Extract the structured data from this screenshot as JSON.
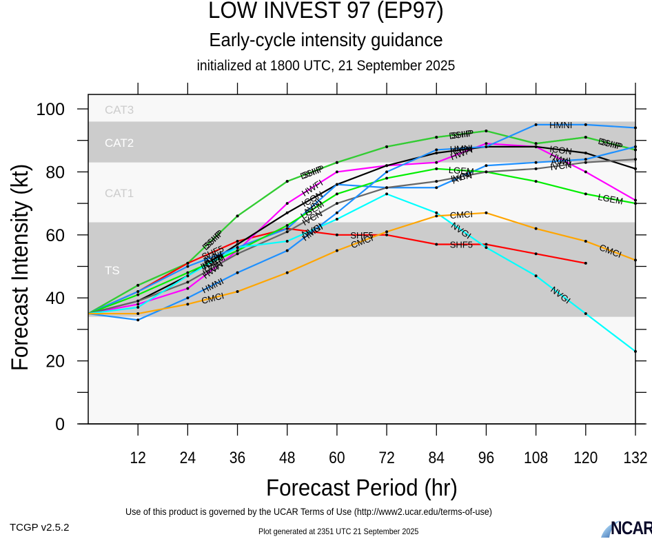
{
  "header": {
    "title": "LOW INVEST 97 (EP97)",
    "subtitle": "Early-cycle intensity guidance",
    "init_line": "initialized at 1800 UTC, 21 September 2025"
  },
  "footer": {
    "terms": "Use of this product is governed by the UCAR Terms of Use (http://www2.ucar.edu/terms-of-use)",
    "generated": "Plot generated at 2351 UTC   21 September 2025",
    "version": "TCGP v2.5.2",
    "logo_text": "NCAR"
  },
  "chart_data": {
    "type": "line",
    "title": "LOW INVEST 97 (EP97)",
    "xlabel": "Forecast Period (hr)",
    "ylabel": "Forecast Intensity (kt)",
    "xlim": [
      0,
      132
    ],
    "ylim": [
      0,
      100
    ],
    "xticks": [
      12,
      24,
      36,
      48,
      60,
      72,
      84,
      96,
      108,
      120,
      132
    ],
    "yticks": [
      0,
      20,
      40,
      60,
      80,
      100
    ],
    "grid": false,
    "bands": [
      {
        "label": "TS",
        "from": 34,
        "to": 64,
        "color": "#cccccc",
        "label_color": "#ffffff"
      },
      {
        "label": "CAT1",
        "from": 64,
        "to": 83,
        "color": "#f8f8f8",
        "label_color": "#cccccc"
      },
      {
        "label": "CAT2",
        "from": 83,
        "to": 96,
        "color": "#cccccc",
        "label_color": "#ffffff"
      },
      {
        "label": "CAT3",
        "from": 96,
        "to": 113,
        "color": "#f8f8f8",
        "label_color": "#cccccc"
      }
    ],
    "series": [
      {
        "name": "DSHP",
        "color": "#33cc33",
        "x": [
          0,
          12,
          24,
          36,
          48,
          60,
          72,
          84,
          96,
          108,
          120,
          132
        ],
        "values": [
          35,
          44,
          51,
          66,
          77,
          83,
          88,
          91,
          93,
          89,
          91,
          87
        ],
        "label_at": [
          24,
          48,
          84,
          120
        ]
      },
      {
        "name": "SHIP",
        "color": "#33cc33",
        "x": [
          0,
          12,
          24,
          36,
          48,
          60,
          72,
          84,
          96,
          108,
          120,
          132
        ],
        "values": [
          35,
          44,
          51,
          66,
          77,
          83,
          88,
          91,
          93,
          89,
          91,
          87
        ],
        "label_at": [
          24,
          48,
          84,
          120
        ]
      },
      {
        "name": "SHF5",
        "color": "#ff0000",
        "x": [
          0,
          12,
          24,
          36,
          48,
          60,
          72,
          84,
          96,
          108,
          120
        ],
        "values": [
          35,
          42,
          51,
          58,
          62,
          60,
          60,
          57,
          57,
          54,
          51
        ],
        "label_at": [
          24,
          60,
          84
        ]
      },
      {
        "name": "HWFI",
        "color": "#ff00ff",
        "x": [
          0,
          12,
          24,
          36,
          48,
          60,
          72,
          84,
          96,
          108,
          120,
          132
        ],
        "values": [
          35,
          38,
          43,
          55,
          70,
          80,
          82,
          83,
          89,
          88,
          80,
          71
        ],
        "label_at": [
          24,
          48,
          84,
          108
        ]
      },
      {
        "name": "ICON",
        "color": "#000000",
        "x": [
          0,
          12,
          24,
          36,
          48,
          60,
          72,
          84,
          96,
          108,
          120,
          132
        ],
        "values": [
          35,
          39,
          47,
          57,
          67,
          76,
          82,
          86,
          88,
          88,
          86,
          81
        ],
        "label_at": [
          24,
          48,
          84,
          108
        ]
      },
      {
        "name": "AVNI",
        "color": "#1e90ff",
        "x": [
          0,
          12,
          24,
          36,
          48,
          60,
          72,
          84,
          96,
          108,
          120,
          132
        ],
        "values": [
          35,
          42,
          50,
          56,
          62,
          76,
          75,
          75,
          82,
          83,
          84,
          88
        ],
        "label_at": [
          24,
          48,
          84,
          108
        ]
      },
      {
        "name": "LGEM",
        "color": "#00ee00",
        "x": [
          0,
          12,
          24,
          36,
          48,
          60,
          72,
          84,
          96,
          108,
          120,
          132
        ],
        "values": [
          35,
          41,
          48,
          55,
          63,
          73,
          78,
          81,
          80,
          77,
          73,
          70
        ],
        "label_at": [
          24,
          48,
          84,
          120
        ]
      },
      {
        "name": "IVCN",
        "color": "#666666",
        "x": [
          0,
          12,
          24,
          36,
          48,
          60,
          72,
          84,
          96,
          108,
          120,
          132
        ],
        "values": [
          35,
          39,
          45,
          54,
          61,
          70,
          75,
          77,
          80,
          81,
          83,
          84
        ],
        "label_at": [
          24,
          48,
          84,
          108
        ]
      },
      {
        "name": "NVGI",
        "color": "#00ffff",
        "x": [
          0,
          12,
          24,
          36,
          48,
          60,
          72,
          84,
          96,
          108,
          120,
          132
        ],
        "values": [
          35,
          37,
          47,
          56,
          58,
          65,
          73,
          67,
          56,
          47,
          35,
          23
        ],
        "label_at": [
          24,
          48,
          84,
          108
        ]
      },
      {
        "name": "HMNI",
        "color": "#1e90ff",
        "x": [
          0,
          12,
          24,
          36,
          48,
          60,
          72,
          84,
          96,
          108,
          120,
          132
        ],
        "values": [
          35,
          33,
          40,
          48,
          55,
          67,
          80,
          87,
          88,
          95,
          95,
          94
        ],
        "label_at": [
          24,
          48,
          84,
          108
        ]
      },
      {
        "name": "CMCI",
        "color": "#ffa500",
        "x": [
          0,
          12,
          24,
          36,
          48,
          60,
          72,
          84,
          96,
          108,
          120,
          132
        ],
        "values": [
          35,
          35,
          38,
          42,
          48,
          55,
          61,
          66,
          67,
          62,
          58,
          52
        ],
        "label_at": [
          24,
          60,
          84,
          120
        ]
      }
    ]
  }
}
